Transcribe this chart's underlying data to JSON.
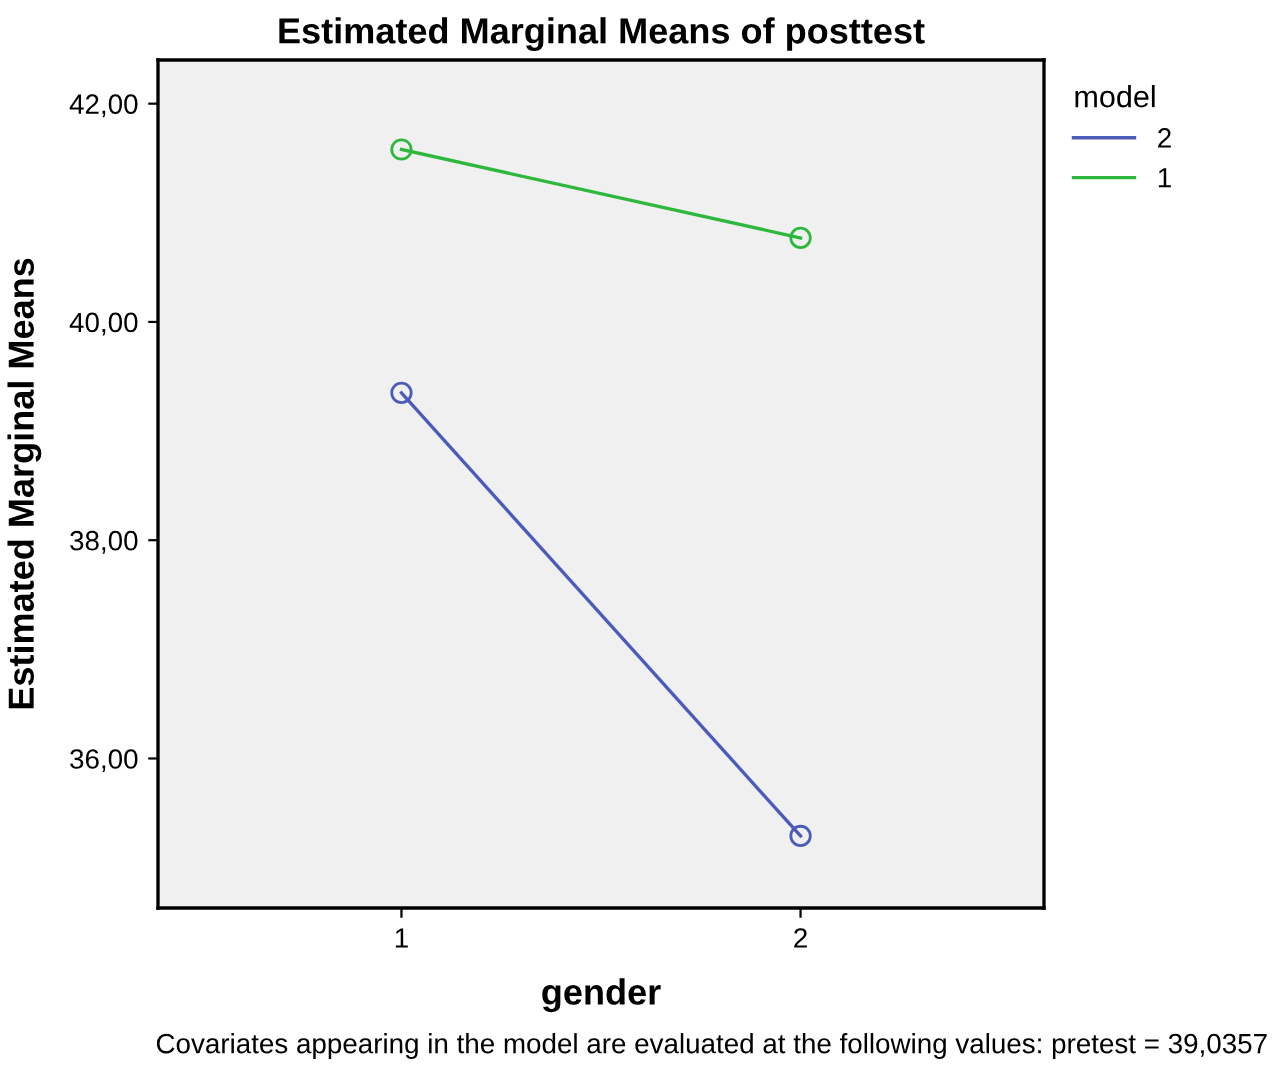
{
  "chart_data": {
    "type": "line",
    "title": "Estimated Marginal Means of posttest",
    "xlabel": "gender",
    "ylabel": "Estimated Marginal Means",
    "legend_title": "model",
    "categories": [
      "1",
      "2"
    ],
    "series": [
      {
        "name": "2",
        "color": "#4a5cb8",
        "values": [
          39.35,
          35.29
        ]
      },
      {
        "name": "1",
        "color": "#2db83d",
        "values": [
          41.58,
          40.77
        ]
      }
    ],
    "ylim": [
      34.63,
      42.4
    ],
    "yticks": [
      {
        "value": 36,
        "label": "36,00"
      },
      {
        "value": 38,
        "label": "38,00"
      },
      {
        "value": 40,
        "label": "40,00"
      },
      {
        "value": 42,
        "label": "42,00"
      }
    ],
    "annotations": [
      "Covariates appearing in the model are evaluated at the following values: pretest = 39,0357"
    ],
    "marker": "circle",
    "line_style": "solid",
    "legend": "top right",
    "grid": false
  }
}
